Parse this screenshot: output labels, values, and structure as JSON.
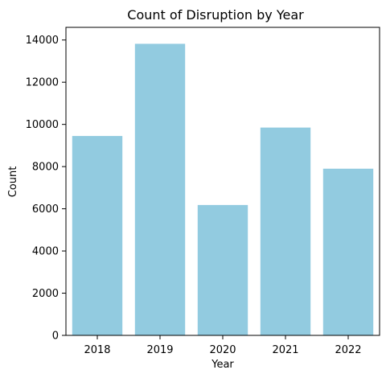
{
  "chart_data": {
    "type": "bar",
    "title": "Count of Disruption by Year",
    "xlabel": "Year",
    "ylabel": "Count",
    "categories": [
      "2018",
      "2019",
      "2020",
      "2021",
      "2022"
    ],
    "values": [
      9450,
      13820,
      6180,
      9850,
      7900
    ],
    "ylim": [
      0,
      14600
    ],
    "yticks": [
      0,
      2000,
      4000,
      6000,
      8000,
      10000,
      12000,
      14000
    ],
    "bar_color": "#92cbe0",
    "grid": false,
    "legend": "none"
  }
}
